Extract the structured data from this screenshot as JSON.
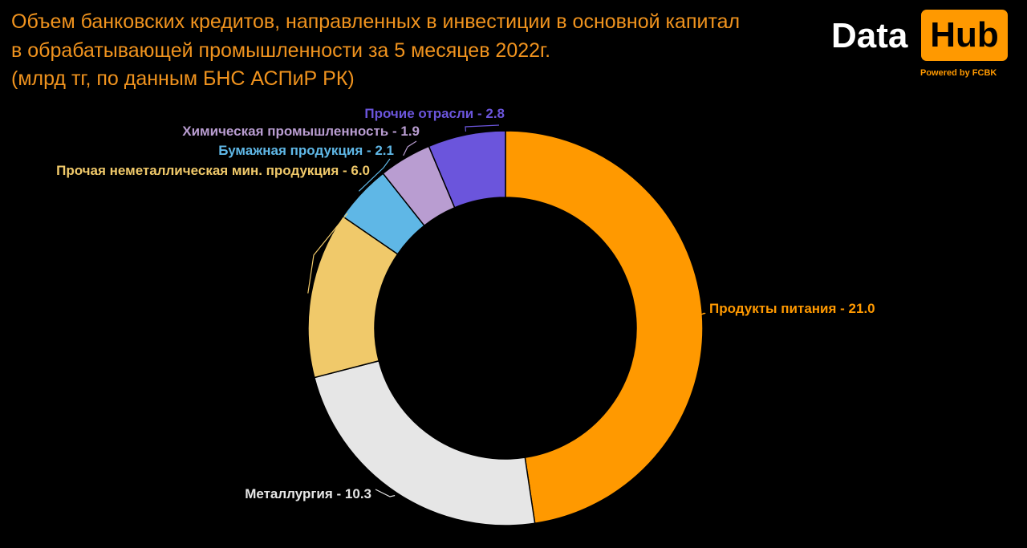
{
  "title": {
    "lines": [
      "Объем банковских кредитов, направленных в инвестиции в основной капитал",
      "в обрабатывающей промышленности за 5 месяцев 2022г.",
      "(млрд тг, по данным БНС АСПиР РК)"
    ]
  },
  "logo": {
    "data": "Data",
    "hub": "Hub",
    "powered": "Powered by FCBK"
  },
  "colors": {
    "title": "#f0931e",
    "background": "#000000",
    "logo_accent": "#ff9900",
    "logo_text": "#ffffff"
  },
  "chart_data": {
    "type": "pie",
    "variant": "donut",
    "unit": "млрд тг",
    "slices": [
      {
        "label": "Продукты питания",
        "value": 21.0,
        "display": "Продукты питания - 21.0",
        "color": "#ff9900"
      },
      {
        "label": "Металлургия",
        "value": 10.3,
        "display": "Металлургия - 10.3",
        "color": "#e6e6e6"
      },
      {
        "label": "Прочая неметаллическая мин. продукция",
        "value": 6.0,
        "display": "Прочая неметаллическая мин. продукция - 6.0",
        "color": "#f0c96a"
      },
      {
        "label": "Бумажная продукция",
        "value": 2.1,
        "display": "Бумажная продукция - 2.1",
        "color": "#5fb7e6"
      },
      {
        "label": "Химическая промышленность",
        "value": 1.9,
        "display": "Химическая промышленность - 1.9",
        "color": "#b99dd1"
      },
      {
        "label": "Прочие отрасли",
        "value": 2.8,
        "display": "Прочие отрасли - 2.8",
        "color": "#6b55dc"
      }
    ]
  }
}
